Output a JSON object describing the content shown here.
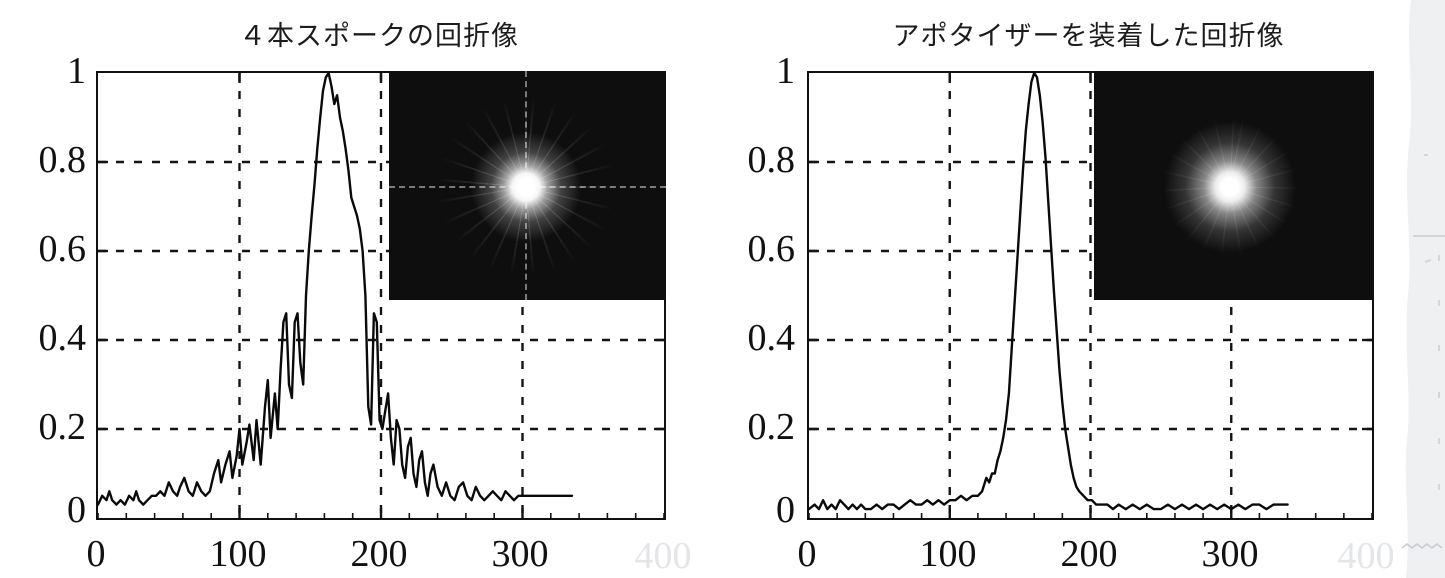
{
  "figure": {
    "kind": "scanned-slide-figure",
    "background": "#ffffff"
  },
  "charts": [
    {
      "title": "４本スポークの回折像",
      "y_labels": [
        "1",
        "0.8",
        "0.6",
        "0.4",
        "0.2",
        "0"
      ],
      "x_labels": [
        "0",
        "100",
        "200",
        "300"
      ],
      "x_label_faint": "400",
      "inset": {
        "description": "diffraction-image-with-spikes",
        "has_crosshair": true,
        "background": "#0e0e0e"
      }
    },
    {
      "title": "アポタイザーを装着した回折像",
      "y_labels": [
        "1",
        "0.8",
        "0.6",
        "0.4",
        "0.2",
        "0"
      ],
      "x_labels": [
        "0",
        "100",
        "200",
        "300"
      ],
      "x_label_faint": "400",
      "inset": {
        "description": "apodized-diffraction-image",
        "has_crosshair": false,
        "background": "#0e0e0e"
      }
    }
  ],
  "colors": {
    "curve": "#0a0a0a",
    "frame": "#101010",
    "grid": "#141414",
    "faint_tick_label": "#e3e5e9",
    "inset_background": "#0e0e0e",
    "scan_edge": "#eef0f2",
    "scan_marks": "#d3d6db"
  },
  "chart_data": [
    {
      "type": "line",
      "title": "４本スポークの回折像",
      "xlabel": "",
      "ylabel": "",
      "xlim": [
        0,
        400
      ],
      "ylim": [
        0,
        1
      ],
      "grid_x": [
        100,
        200,
        300
      ],
      "grid_y": [
        0.2,
        0.4,
        0.6,
        0.8
      ],
      "grid_style": "dashed",
      "x": [
        0,
        3,
        6,
        8,
        10,
        13,
        16,
        19,
        22,
        25,
        27,
        29,
        32,
        35,
        38,
        41,
        44,
        47,
        50,
        53,
        56,
        58,
        61,
        64,
        67,
        70,
        73,
        76,
        79,
        82,
        85,
        87,
        90,
        93,
        95,
        98,
        100,
        102,
        105,
        107,
        110,
        112,
        115,
        118,
        120,
        122,
        125,
        127,
        129,
        131,
        133,
        135,
        137,
        139,
        141,
        143,
        145,
        147,
        149,
        151,
        153,
        155,
        157,
        159,
        161,
        163,
        165,
        167,
        169,
        171,
        173,
        175,
        177,
        179,
        181,
        183,
        185,
        187,
        189,
        191,
        193,
        195,
        197,
        199,
        201,
        203,
        205,
        207,
        209,
        211,
        213,
        215,
        217,
        219,
        221,
        223,
        225,
        227,
        229,
        231,
        233,
        235,
        237,
        240,
        243,
        246,
        249,
        252,
        255,
        258,
        261,
        264,
        267,
        270,
        273,
        276,
        279,
        282,
        285,
        288,
        291,
        294,
        297,
        300,
        305,
        310,
        315,
        320,
        325,
        330,
        335
      ],
      "y": [
        0.03,
        0.05,
        0.04,
        0.06,
        0.04,
        0.03,
        0.04,
        0.03,
        0.05,
        0.04,
        0.06,
        0.04,
        0.03,
        0.04,
        0.05,
        0.05,
        0.06,
        0.05,
        0.08,
        0.06,
        0.05,
        0.07,
        0.09,
        0.06,
        0.05,
        0.08,
        0.06,
        0.05,
        0.06,
        0.1,
        0.13,
        0.08,
        0.12,
        0.15,
        0.09,
        0.14,
        0.2,
        0.12,
        0.17,
        0.21,
        0.13,
        0.22,
        0.12,
        0.25,
        0.31,
        0.18,
        0.28,
        0.2,
        0.33,
        0.44,
        0.46,
        0.3,
        0.27,
        0.44,
        0.46,
        0.35,
        0.3,
        0.5,
        0.6,
        0.68,
        0.75,
        0.83,
        0.9,
        0.96,
        0.99,
        1.0,
        0.97,
        0.93,
        0.95,
        0.9,
        0.87,
        0.83,
        0.78,
        0.72,
        0.7,
        0.68,
        0.65,
        0.6,
        0.5,
        0.25,
        0.21,
        0.46,
        0.44,
        0.22,
        0.2,
        0.24,
        0.28,
        0.18,
        0.12,
        0.22,
        0.2,
        0.12,
        0.09,
        0.16,
        0.18,
        0.1,
        0.07,
        0.13,
        0.15,
        0.08,
        0.05,
        0.1,
        0.12,
        0.07,
        0.05,
        0.08,
        0.05,
        0.04,
        0.07,
        0.08,
        0.05,
        0.04,
        0.07,
        0.05,
        0.04,
        0.05,
        0.06,
        0.05,
        0.04,
        0.06,
        0.05,
        0.04,
        0.05,
        0.05,
        0.05,
        0.05,
        0.05,
        0.05,
        0.05,
        0.05,
        0.05
      ]
    },
    {
      "type": "line",
      "title": "アポタイザーを装着した回折像",
      "xlabel": "",
      "ylabel": "",
      "xlim": [
        0,
        400
      ],
      "ylim": [
        0,
        1
      ],
      "grid_x": [
        100,
        200,
        300
      ],
      "grid_y": [
        0.2,
        0.4,
        0.6,
        0.8
      ],
      "grid_style": "dashed",
      "x": [
        0,
        4,
        7,
        10,
        13,
        16,
        19,
        22,
        25,
        28,
        31,
        34,
        37,
        40,
        44,
        48,
        52,
        56,
        60,
        64,
        68,
        72,
        76,
        80,
        84,
        88,
        92,
        96,
        100,
        104,
        108,
        112,
        116,
        120,
        123,
        126,
        128,
        130,
        132,
        134,
        136,
        138,
        140,
        142,
        144,
        146,
        148,
        150,
        152,
        154,
        156,
        158,
        160,
        162,
        164,
        166,
        168,
        170,
        172,
        174,
        176,
        178,
        180,
        182,
        184,
        186,
        188,
        190,
        192,
        195,
        198,
        201,
        204,
        208,
        212,
        216,
        220,
        225,
        230,
        235,
        240,
        245,
        250,
        255,
        260,
        265,
        270,
        275,
        280,
        285,
        290,
        295,
        300,
        305,
        310,
        315,
        320,
        325,
        330,
        335,
        340
      ],
      "y": [
        0.02,
        0.03,
        0.02,
        0.04,
        0.02,
        0.03,
        0.02,
        0.04,
        0.03,
        0.02,
        0.03,
        0.02,
        0.03,
        0.02,
        0.02,
        0.03,
        0.02,
        0.03,
        0.03,
        0.02,
        0.03,
        0.04,
        0.03,
        0.03,
        0.04,
        0.03,
        0.04,
        0.03,
        0.04,
        0.04,
        0.05,
        0.04,
        0.05,
        0.05,
        0.06,
        0.09,
        0.08,
        0.1,
        0.1,
        0.13,
        0.15,
        0.18,
        0.22,
        0.28,
        0.38,
        0.48,
        0.58,
        0.68,
        0.78,
        0.87,
        0.93,
        0.98,
        1.0,
        0.99,
        0.95,
        0.89,
        0.81,
        0.71,
        0.61,
        0.51,
        0.42,
        0.33,
        0.26,
        0.2,
        0.16,
        0.12,
        0.09,
        0.07,
        0.06,
        0.05,
        0.04,
        0.04,
        0.03,
        0.03,
        0.03,
        0.02,
        0.03,
        0.02,
        0.03,
        0.02,
        0.03,
        0.02,
        0.02,
        0.03,
        0.02,
        0.03,
        0.02,
        0.03,
        0.02,
        0.03,
        0.02,
        0.03,
        0.02,
        0.03,
        0.02,
        0.03,
        0.03,
        0.02,
        0.03,
        0.03,
        0.03
      ]
    }
  ]
}
